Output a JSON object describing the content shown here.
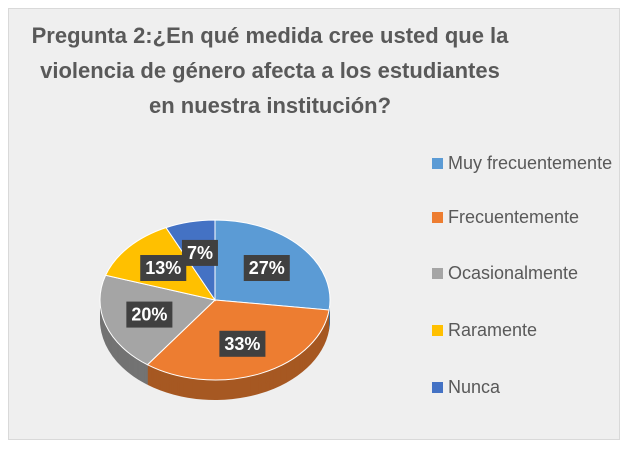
{
  "chart_data": {
    "type": "pie",
    "title": "Pregunta 2:¿En qué medida cree usted que la violencia de género afecta a los estudiantes en nuestra institución?",
    "categories": [
      "Muy frecuentemente",
      "Frecuentemente",
      "Ocasionalmente",
      "Raramente",
      "Nunca"
    ],
    "values": [
      27,
      33,
      20,
      13,
      7
    ],
    "value_labels": [
      "27%",
      "33%",
      "20%",
      "13%",
      "7%"
    ],
    "colors": [
      "#5b9bd5",
      "#ed7d31",
      "#a5a5a5",
      "#ffc000",
      "#4472c4"
    ],
    "legend": "right"
  }
}
